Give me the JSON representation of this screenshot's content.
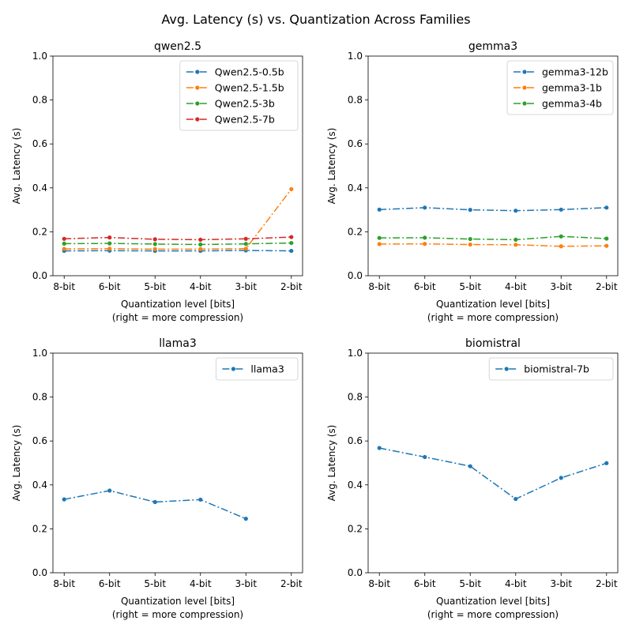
{
  "suptitle": "Avg. Latency (s) vs. Quantization Across Families",
  "colors": {
    "c0": "#1f77b4",
    "c1": "#ff7f0e",
    "c2": "#2ca02c",
    "c3": "#d62728"
  },
  "chart_data": [
    {
      "type": "line",
      "title": "qwen2.5",
      "xlabel": "Quantization level [bits]",
      "xlabel2": "(right = more compression)",
      "ylabel": "Avg. Latency (s)",
      "categories": [
        "8-bit",
        "6-bit",
        "5-bit",
        "4-bit",
        "3-bit",
        "2-bit"
      ],
      "ylim": [
        0,
        1.0
      ],
      "yticks": [
        "0.0",
        "0.2",
        "0.4",
        "0.6",
        "0.8",
        "1.0"
      ],
      "legend": "top-right",
      "series": [
        {
          "name": "Qwen2.5-0.5b",
          "color": "#1f77b4",
          "values": [
            0.113,
            0.114,
            0.113,
            0.113,
            0.115,
            0.113
          ]
        },
        {
          "name": "Qwen2.5-1.5b",
          "color": "#ff7f0e",
          "values": [
            0.122,
            0.123,
            0.121,
            0.121,
            0.123,
            0.394
          ]
        },
        {
          "name": "Qwen2.5-3b",
          "color": "#2ca02c",
          "values": [
            0.146,
            0.147,
            0.144,
            0.142,
            0.145,
            0.149
          ]
        },
        {
          "name": "Qwen2.5-7b",
          "color": "#d62728",
          "values": [
            0.168,
            0.174,
            0.166,
            0.164,
            0.168,
            0.176
          ]
        }
      ]
    },
    {
      "type": "line",
      "title": "gemma3",
      "xlabel": "Quantization level [bits]",
      "xlabel2": "(right = more compression)",
      "ylabel": "Avg. Latency (s)",
      "categories": [
        "8-bit",
        "6-bit",
        "5-bit",
        "4-bit",
        "3-bit",
        "2-bit"
      ],
      "ylim": [
        0,
        1.0
      ],
      "yticks": [
        "0.0",
        "0.2",
        "0.4",
        "0.6",
        "0.8",
        "1.0"
      ],
      "legend": "top-right",
      "series": [
        {
          "name": "gemma3-12b",
          "color": "#1f77b4",
          "values": [
            0.301,
            0.31,
            0.3,
            0.296,
            0.301,
            0.31
          ]
        },
        {
          "name": "gemma3-1b",
          "color": "#ff7f0e",
          "values": [
            0.144,
            0.145,
            0.142,
            0.141,
            0.134,
            0.136
          ]
        },
        {
          "name": "gemma3-4b",
          "color": "#2ca02c",
          "values": [
            0.172,
            0.173,
            0.167,
            0.164,
            0.179,
            0.169
          ]
        }
      ]
    },
    {
      "type": "line",
      "title": "llama3",
      "xlabel": "Quantization level [bits]",
      "xlabel2": "(right = more compression)",
      "ylabel": "Avg. Latency (s)",
      "categories": [
        "8-bit",
        "6-bit",
        "5-bit",
        "4-bit",
        "3-bit",
        "2-bit"
      ],
      "ylim": [
        0,
        1.0
      ],
      "yticks": [
        "0.0",
        "0.2",
        "0.4",
        "0.6",
        "0.8",
        "1.0"
      ],
      "legend": "top-right",
      "series": [
        {
          "name": "llama3",
          "color": "#1f77b4",
          "values": [
            0.334,
            0.374,
            0.322,
            0.333,
            0.246,
            null
          ]
        }
      ]
    },
    {
      "type": "line",
      "title": "biomistral",
      "xlabel": "Quantization level [bits]",
      "xlabel2": "(right = more compression)",
      "ylabel": "Avg. Latency (s)",
      "categories": [
        "8-bit",
        "6-bit",
        "5-bit",
        "4-bit",
        "3-bit",
        "2-bit"
      ],
      "ylim": [
        0,
        1.0
      ],
      "yticks": [
        "0.0",
        "0.2",
        "0.4",
        "0.6",
        "0.8",
        "1.0"
      ],
      "legend": "top-right",
      "series": [
        {
          "name": "biomistral-7b",
          "color": "#1f77b4",
          "values": [
            0.568,
            0.527,
            0.485,
            0.336,
            0.432,
            0.499
          ]
        }
      ]
    }
  ]
}
